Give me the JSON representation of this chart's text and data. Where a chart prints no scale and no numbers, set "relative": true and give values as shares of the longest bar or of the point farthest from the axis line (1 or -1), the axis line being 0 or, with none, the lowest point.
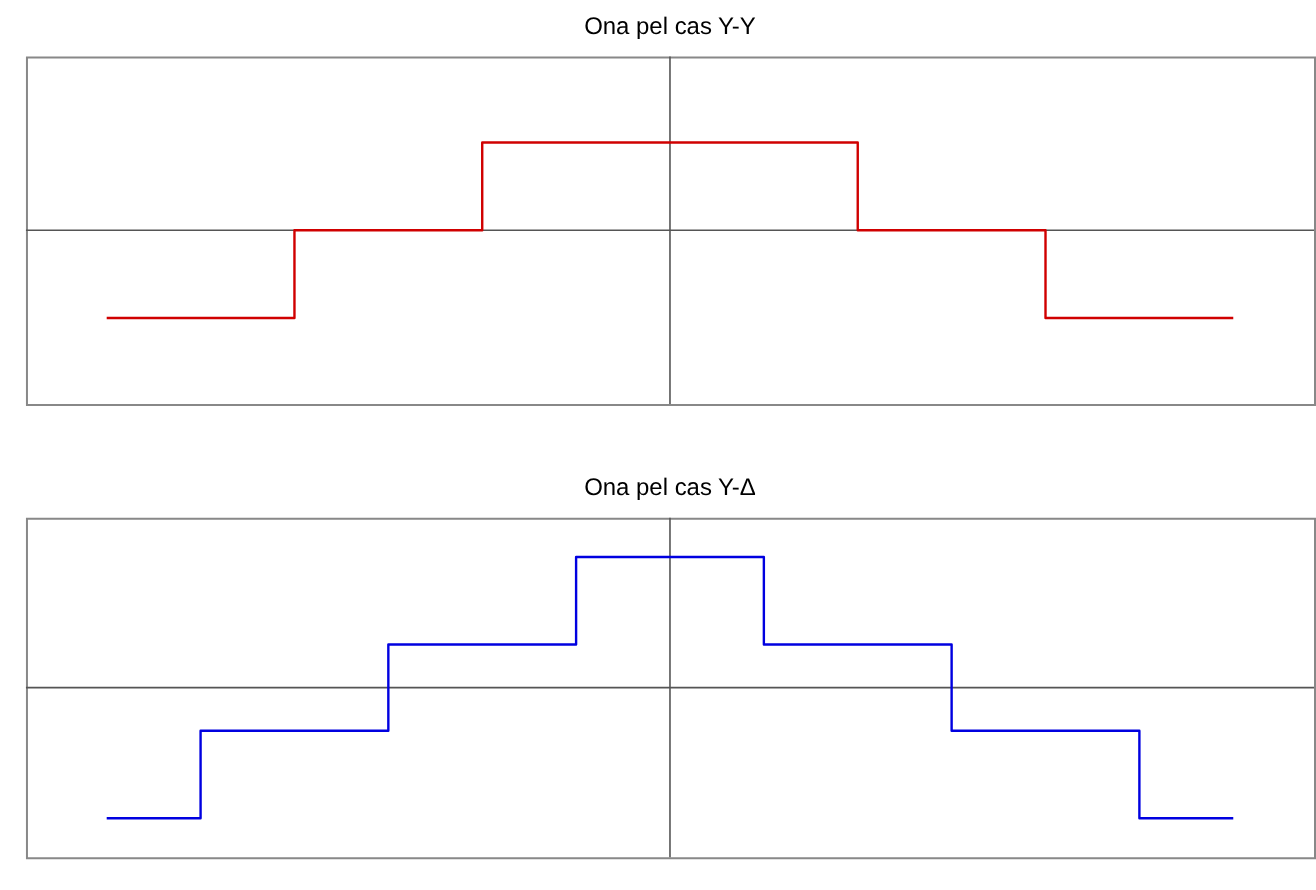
{
  "chart_data": [
    {
      "type": "step",
      "title": "Ona pel cas Y-Y",
      "relative": true,
      "categories": [
        null,
        null,
        null,
        null,
        null,
        null,
        null,
        null,
        null,
        null,
        null,
        null,
        null
      ],
      "series": [
        {
          "color": "#d00000",
          "values": [
            -1,
            -1,
            0,
            0,
            1,
            1,
            1,
            1,
            0,
            0,
            -1,
            -1,
            -1
          ]
        }
      ]
    },
    {
      "type": "step",
      "title": "Ona pel cas Y-Δ",
      "relative": true,
      "categories": [
        null,
        null,
        null,
        null,
        null,
        null,
        null,
        null,
        null,
        null,
        null,
        null,
        null
      ],
      "series": [
        {
          "color": "#0000e0",
          "values": [
            -1,
            -0.33,
            -0.33,
            0.33,
            0.33,
            1,
            1,
            0.33,
            0.33,
            -0.33,
            -0.33,
            -1,
            -1
          ]
        }
      ]
    }
  ]
}
